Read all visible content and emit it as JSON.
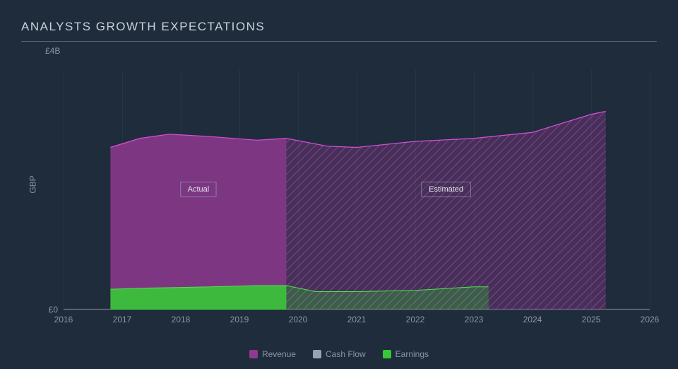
{
  "chart": {
    "type": "area",
    "background_color": "#1f2c3c",
    "title": "ANALYSTS GROWTH EXPECTATIONS",
    "title_color": "#c9d1d9",
    "title_underline_color": "#5a6674",
    "currency_label": "GBP",
    "text_color": "#8b97a5",
    "grid_color": "#3a4756",
    "axis_line_color": "#6b7785",
    "x": {
      "min": 2016,
      "max": 2026,
      "ticks": [
        2016,
        2017,
        2018,
        2019,
        2020,
        2021,
        2022,
        2023,
        2024,
        2025,
        2026
      ]
    },
    "y": {
      "min": 0,
      "max": 4,
      "unit_prefix": "£",
      "unit_suffix": "B",
      "ticks": [
        {
          "v": 0,
          "label": "£0"
        },
        {
          "v": 4,
          "label": "£4B"
        }
      ]
    },
    "split_year": 2019.8,
    "actual_label": "Actual",
    "estimated_label": "Estimated",
    "region_label_text_color": "#e0e5ea",
    "region_label_border_color": "#8b97a5",
    "series": {
      "revenue": {
        "label": "Revenue",
        "color_fill": "#8e3a8e",
        "color_line": "#d94fd9",
        "fill_opacity": 0.85,
        "line_width": 1.2,
        "hatch_color": "#b050b0",
        "points": [
          {
            "x": 2016.8,
            "y": 2.7
          },
          {
            "x": 2017.3,
            "y": 2.85
          },
          {
            "x": 2017.8,
            "y": 2.92
          },
          {
            "x": 2018.5,
            "y": 2.88
          },
          {
            "x": 2019.3,
            "y": 2.82
          },
          {
            "x": 2019.8,
            "y": 2.85
          },
          {
            "x": 2020.5,
            "y": 2.72
          },
          {
            "x": 2021.0,
            "y": 2.7
          },
          {
            "x": 2022.0,
            "y": 2.8
          },
          {
            "x": 2023.0,
            "y": 2.85
          },
          {
            "x": 2024.0,
            "y": 2.95
          },
          {
            "x": 2025.0,
            "y": 3.25
          },
          {
            "x": 2025.25,
            "y": 3.3
          }
        ]
      },
      "cashflow": {
        "label": "Cash Flow",
        "color_fill": "#9aa4b0",
        "color_line": "#9aa4b0",
        "fill_opacity": 0.0,
        "line_width": 0,
        "points": []
      },
      "earnings": {
        "label": "Earnings",
        "color_fill": "#36c936",
        "color_line": "#52e052",
        "fill_opacity": 0.9,
        "line_width": 1.0,
        "hatch_color": "#3aa73a",
        "points": [
          {
            "x": 2016.8,
            "y": 0.34
          },
          {
            "x": 2017.5,
            "y": 0.36
          },
          {
            "x": 2018.5,
            "y": 0.38
          },
          {
            "x": 2019.3,
            "y": 0.4
          },
          {
            "x": 2019.8,
            "y": 0.4
          },
          {
            "x": 2020.3,
            "y": 0.3
          },
          {
            "x": 2021.0,
            "y": 0.3
          },
          {
            "x": 2022.0,
            "y": 0.32
          },
          {
            "x": 2023.0,
            "y": 0.38
          },
          {
            "x": 2023.25,
            "y": 0.38
          }
        ]
      }
    },
    "legend_order": [
      "revenue",
      "cashflow",
      "earnings"
    ]
  }
}
